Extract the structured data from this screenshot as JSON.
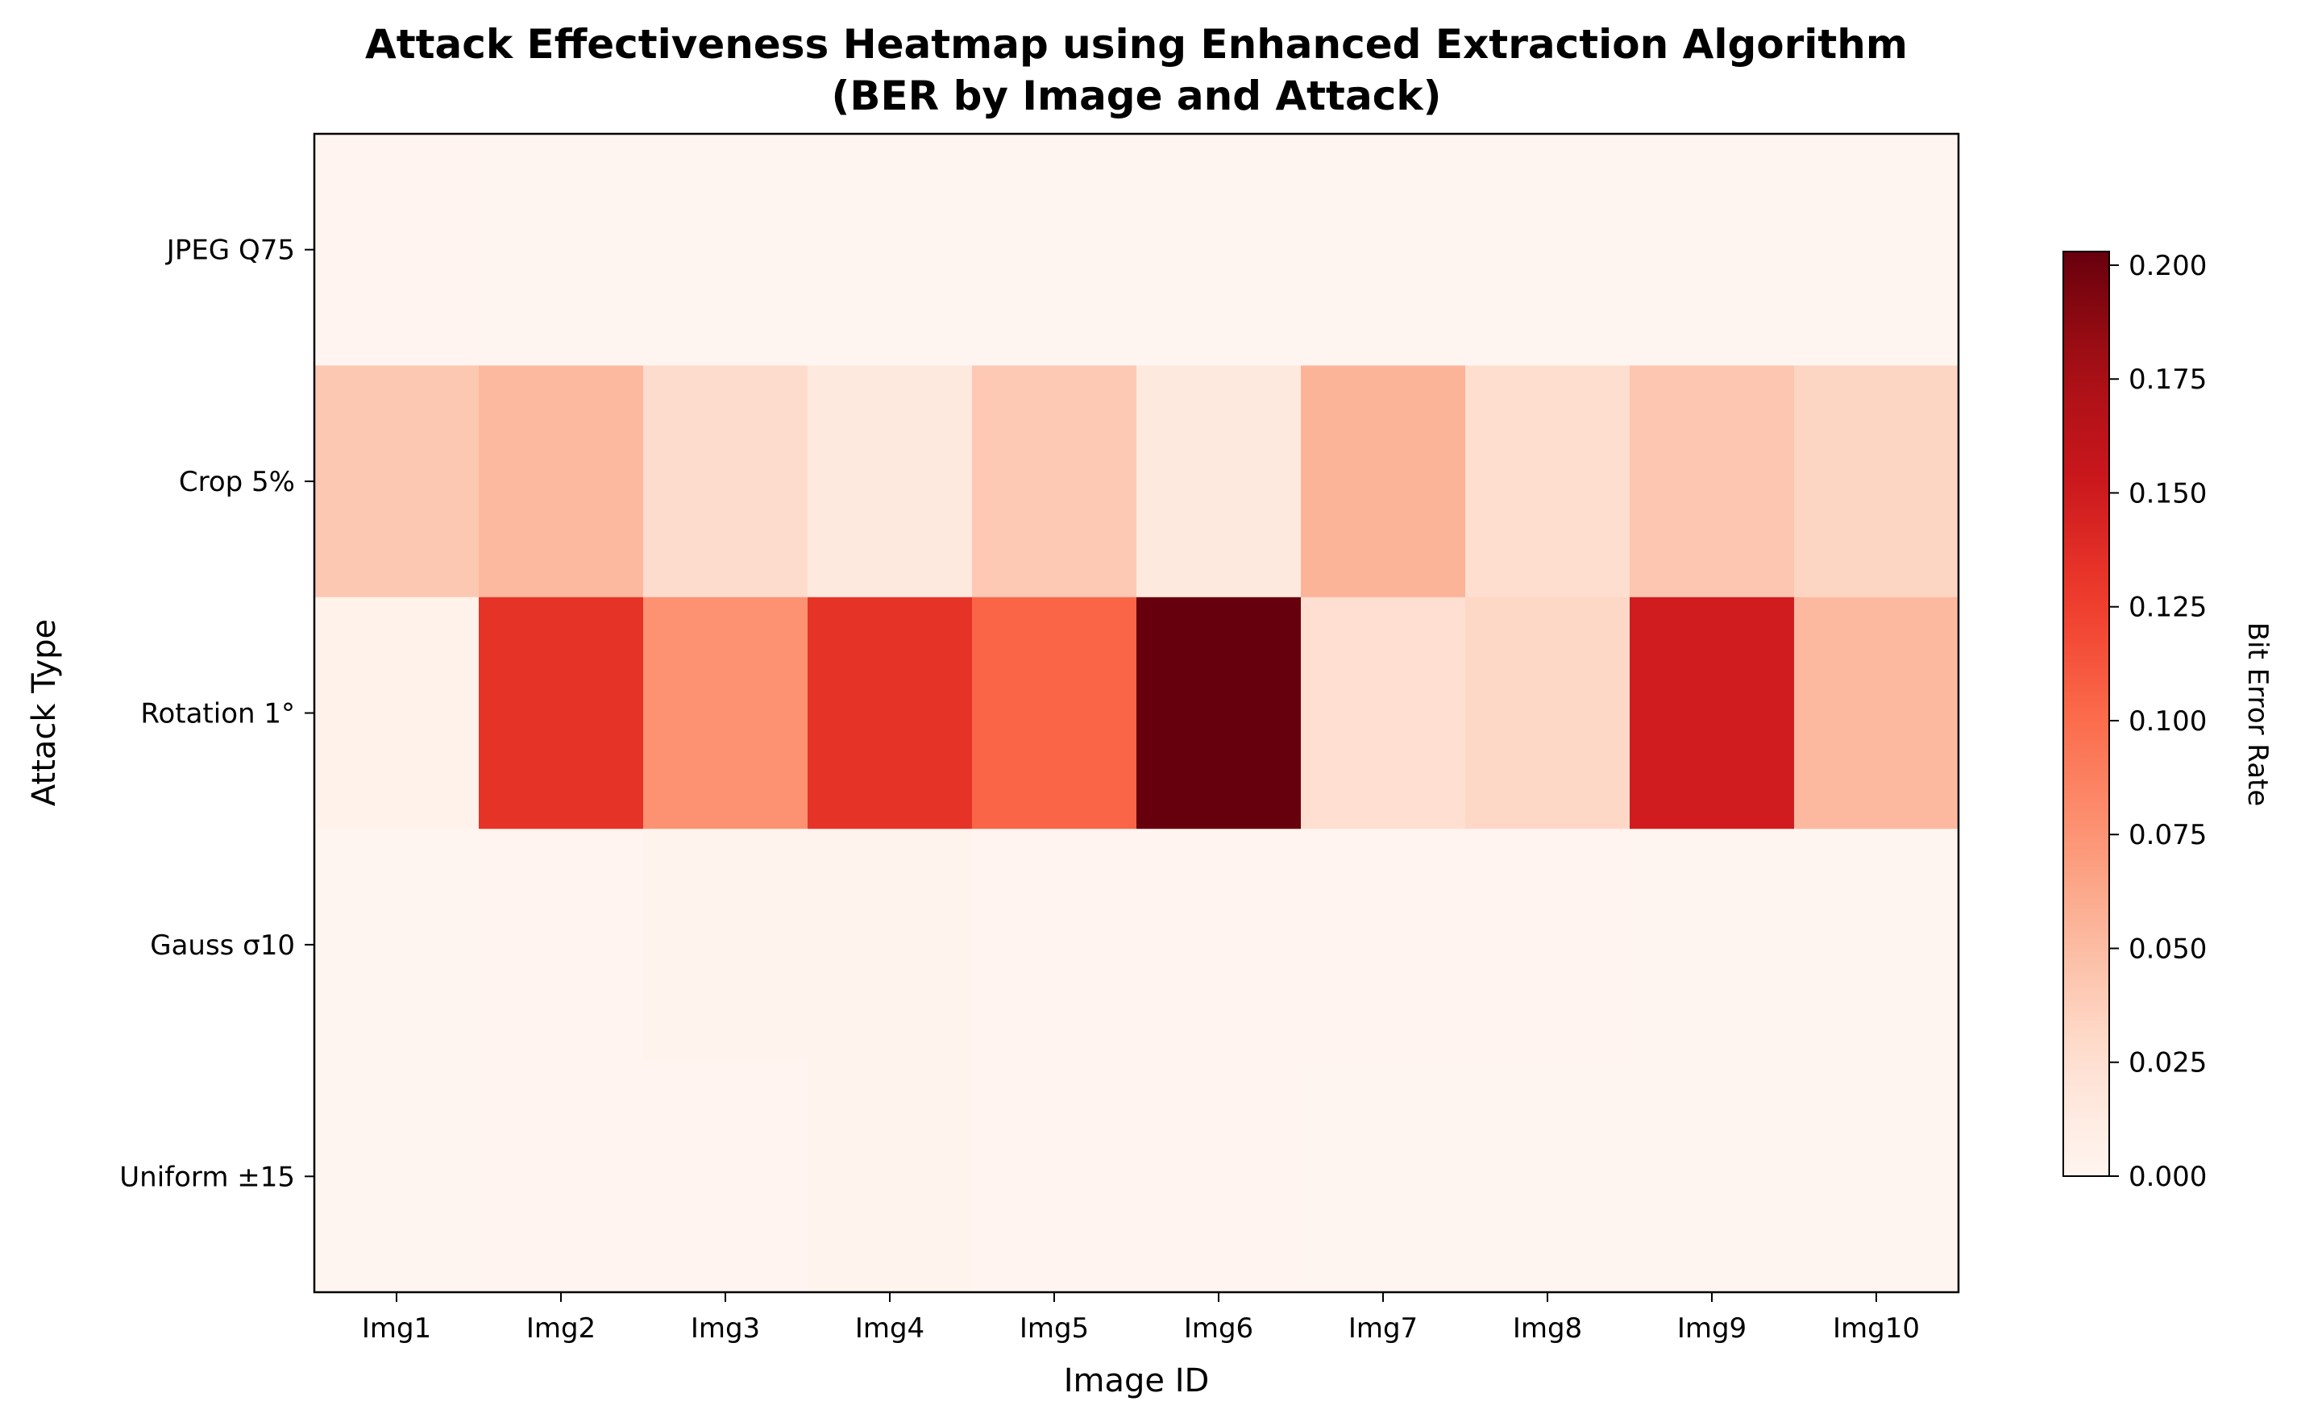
{
  "chart_data": {
    "type": "heatmap",
    "title_line1": "Attack Effectiveness Heatmap using Enhanced Extraction Algorithm",
    "title_line2": "(BER by Image and Attack)",
    "xlabel": "Image ID",
    "ylabel": "Attack Type",
    "colorbar_label": "Bit Error Rate",
    "colormap": "Reds",
    "x_categories": [
      "Img1",
      "Img2",
      "Img3",
      "Img4",
      "Img5",
      "Img6",
      "Img7",
      "Img8",
      "Img9",
      "Img10"
    ],
    "y_categories": [
      "JPEG Q75",
      "Crop 5%",
      "Rotation 1°",
      "Gauss σ10",
      "Uniform ±15"
    ],
    "values": [
      [
        0.001,
        0.0,
        0.0,
        0.0,
        0.0,
        0.0,
        0.0,
        0.0,
        0.0,
        0.0
      ],
      [
        0.042,
        0.052,
        0.028,
        0.015,
        0.041,
        0.014,
        0.055,
        0.027,
        0.043,
        0.033
      ],
      [
        0.004,
        0.133,
        0.076,
        0.133,
        0.104,
        0.203,
        0.026,
        0.031,
        0.149,
        0.052
      ],
      [
        0.0,
        0.001,
        0.002,
        0.002,
        0.001,
        0.001,
        0.001,
        0.001,
        0.0,
        0.0
      ],
      [
        0.0,
        0.001,
        0.001,
        0.002,
        0.001,
        0.001,
        0.0,
        0.0,
        0.0,
        0.0
      ]
    ],
    "vmin": 0.0,
    "vmax": 0.203,
    "colorbar_ticks": [
      "0.000",
      "0.025",
      "0.050",
      "0.075",
      "0.100",
      "0.125",
      "0.150",
      "0.175",
      "0.200"
    ],
    "colorbar_tick_values": [
      0.0,
      0.025,
      0.05,
      0.075,
      0.1,
      0.125,
      0.15,
      0.175,
      0.2
    ]
  }
}
